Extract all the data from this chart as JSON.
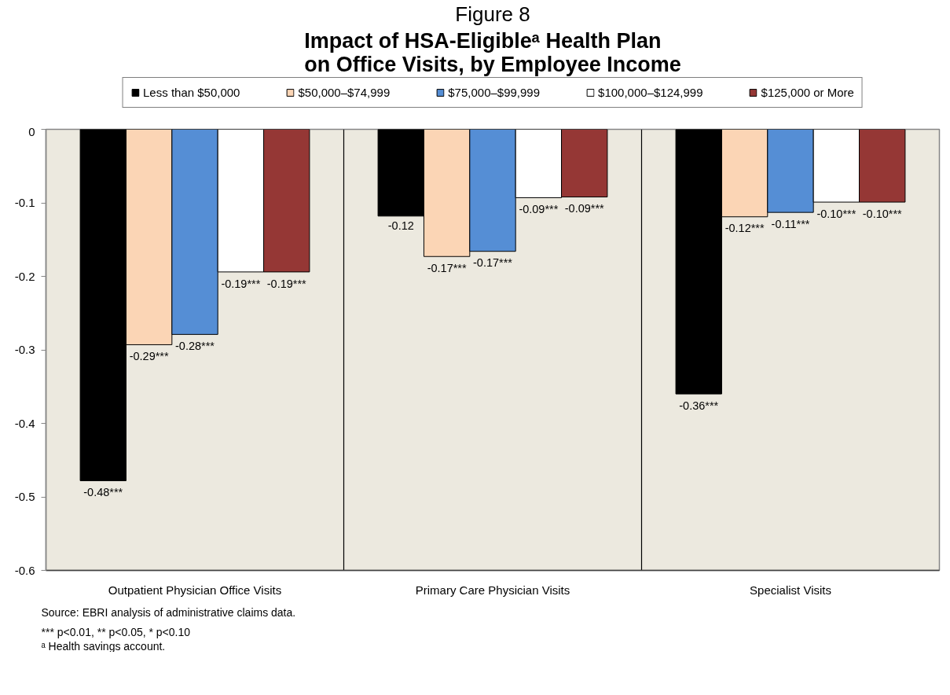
{
  "chart_data": {
    "type": "bar",
    "title": "Figure 8",
    "subtitle": "Impact of HSA-Eligibleᵃ Health Plan on Office Visits, by Employee Income",
    "categories": [
      "Outpatient Physician Office Visits",
      "Primary Care Physician Visits",
      "Specialist Visits"
    ],
    "series": [
      {
        "name": "Less than $50,000",
        "color": "#000000",
        "values": [
          -0.478,
          -0.118,
          -0.36
        ],
        "value_labels": [
          "-0.48***",
          "-0.12",
          "-0.36***"
        ]
      },
      {
        "name": "$50,000–$74,999",
        "color": "#fbd5b5",
        "values": [
          -0.293,
          -0.173,
          -0.119
        ],
        "value_labels": [
          "-0.29***",
          "-0.17***",
          "-0.12***"
        ]
      },
      {
        "name": "$75,000–$99,999",
        "color": "#558ed5",
        "values": [
          -0.279,
          -0.166,
          -0.113
        ],
        "value_labels": [
          "-0.28***",
          "-0.17***",
          "-0.11***"
        ]
      },
      {
        "name": "$100,000–$124,999",
        "color": "#ffffff",
        "values": [
          -0.194,
          -0.093,
          -0.099
        ],
        "value_labels": [
          "-0.19***",
          "-0.09***",
          "-0.10***"
        ]
      },
      {
        "name": "$125,000 or More",
        "color": "#953735",
        "values": [
          -0.194,
          -0.092,
          -0.099
        ],
        "value_labels": [
          "-0.19***",
          "-0.09***",
          "-0.10***"
        ]
      }
    ],
    "ylim": [
      -0.6,
      0
    ],
    "yticks": [
      0,
      -0.1,
      -0.2,
      -0.3,
      -0.4,
      -0.5,
      -0.6
    ],
    "grid": "x",
    "legend": "top",
    "annotations": [
      "Source: EBRI analysis of administrative claims data.",
      "*** p<0.01, ** p<0.05, * p<0.10",
      "ᵃ Health savings account."
    ]
  }
}
